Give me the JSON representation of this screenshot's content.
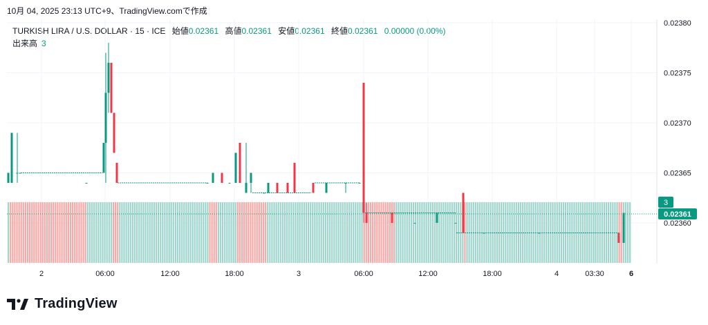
{
  "header": {
    "date_line": "10月 04, 2025 23:13 UTC+9、TradingView.comで作成"
  },
  "legend": {
    "symbol": "TURKISH LIRA / U.S. DOLLAR · 15 · ICE",
    "open_label": "始値",
    "open": "0.02361",
    "high_label": "高値",
    "high": "0.02361",
    "low_label": "安値",
    "low": "0.02361",
    "close_label": "終値",
    "close": "0.02361",
    "change": "0.00000 (0.00%)"
  },
  "volume_legend": {
    "label": "出来高",
    "value": "3"
  },
  "price_badge": "0.02361",
  "volume_badge": "3",
  "colors": {
    "up": "#089981",
    "down": "#f23645",
    "vol_up": "#9ed6cc",
    "vol_down": "#f7a9a7",
    "grid": "#f0f3fa"
  },
  "logo": {
    "icon": "tradingview-logo-icon",
    "text": "TradingView"
  },
  "chart_data": {
    "type": "candlestick",
    "y_ticks": [
      "0.02380",
      "0.02375",
      "0.02370",
      "0.02365",
      "0.02360"
    ],
    "x_ticks": [
      "2",
      "06:00",
      "12:00",
      "18:00",
      "3",
      "06:00",
      "12:00",
      "18:00",
      "4",
      "03:30",
      "6"
    ],
    "ylim": [
      0.023582,
      0.02381
    ],
    "last_price": 0.02361,
    "candles": [
      {
        "o": 0.02364,
        "h": 0.02365,
        "l": 0.02364,
        "c": 0.02365
      },
      {
        "o": 0.02364,
        "h": 0.02369,
        "l": 0.02364,
        "c": 0.02369
      },
      {
        "o": 0.02365,
        "h": 0.02369,
        "l": 0.02364,
        "c": 0.02365
      },
      {
        "o": 0.02365,
        "h": 0.02365,
        "l": 0.02365,
        "c": 0.02365
      },
      {
        "o": 0.02364,
        "h": 0.02364,
        "l": 0.02364,
        "c": 0.02364
      },
      {
        "o": 0.02365,
        "h": 0.02368,
        "l": 0.02365,
        "c": 0.02368
      },
      {
        "o": 0.02368,
        "h": 0.02377,
        "l": 0.02364,
        "c": 0.02373
      },
      {
        "o": 0.02373,
        "h": 0.02378,
        "l": 0.02371,
        "c": 0.02376
      },
      {
        "o": 0.02376,
        "h": 0.02376,
        "l": 0.02371,
        "c": 0.02371
      },
      {
        "o": 0.02371,
        "h": 0.02371,
        "l": 0.02367,
        "c": 0.02367
      },
      {
        "o": 0.02366,
        "h": 0.02366,
        "l": 0.02364,
        "c": 0.02364
      },
      {
        "o": 0.02364,
        "h": 0.02364,
        "l": 0.02364,
        "c": 0.02364
      },
      {
        "o": 0.02364,
        "h": 0.02365,
        "l": 0.02364,
        "c": 0.02365
      },
      {
        "o": 0.02365,
        "h": 0.02365,
        "l": 0.02364,
        "c": 0.02364
      },
      {
        "o": 0.02364,
        "h": 0.02364,
        "l": 0.02364,
        "c": 0.02364
      },
      {
        "o": 0.02364,
        "h": 0.02367,
        "l": 0.02364,
        "c": 0.02367
      },
      {
        "o": 0.02368,
        "h": 0.02368,
        "l": 0.02364,
        "c": 0.02364
      },
      {
        "o": 0.02363,
        "h": 0.02368,
        "l": 0.02363,
        "c": 0.02364
      },
      {
        "o": 0.02364,
        "h": 0.02365,
        "l": 0.02363,
        "c": 0.02365
      },
      {
        "o": 0.02363,
        "h": 0.02363,
        "l": 0.02363,
        "c": 0.02363
      },
      {
        "o": 0.02363,
        "h": 0.02364,
        "l": 0.02363,
        "c": 0.02364
      },
      {
        "o": 0.02364,
        "h": 0.02364,
        "l": 0.02363,
        "c": 0.02363
      },
      {
        "o": 0.02364,
        "h": 0.02364,
        "l": 0.02363,
        "c": 0.02363
      },
      {
        "o": 0.02366,
        "h": 0.02366,
        "l": 0.02363,
        "c": 0.02363
      },
      {
        "o": 0.02364,
        "h": 0.02364,
        "l": 0.02363,
        "c": 0.02363
      },
      {
        "o": 0.02363,
        "h": 0.02364,
        "l": 0.02363,
        "c": 0.02364
      },
      {
        "o": 0.02364,
        "h": 0.02364,
        "l": 0.02363,
        "c": 0.02364
      },
      {
        "o": 0.02364,
        "h": 0.02364,
        "l": 0.02364,
        "c": 0.02364
      },
      {
        "o": 0.02374,
        "h": 0.02374,
        "l": 0.0236,
        "c": 0.02361
      },
      {
        "o": 0.02361,
        "h": 0.02362,
        "l": 0.0236,
        "c": 0.0236
      },
      {
        "o": 0.02361,
        "h": 0.02361,
        "l": 0.0236,
        "c": 0.0236
      },
      {
        "o": 0.0236,
        "h": 0.0236,
        "l": 0.0236,
        "c": 0.0236
      },
      {
        "o": 0.0236,
        "h": 0.02361,
        "l": 0.0236,
        "c": 0.02361
      },
      {
        "o": 0.0236,
        "h": 0.0236,
        "l": 0.0236,
        "c": 0.0236
      },
      {
        "o": 0.02363,
        "h": 0.02363,
        "l": 0.02359,
        "c": 0.02359
      },
      {
        "o": 0.02359,
        "h": 0.02359,
        "l": 0.02359,
        "c": 0.02359
      },
      {
        "o": 0.02359,
        "h": 0.02359,
        "l": 0.02359,
        "c": 0.02359
      },
      {
        "o": 0.02359,
        "h": 0.02359,
        "l": 0.02358,
        "c": 0.02358
      },
      {
        "o": 0.02358,
        "h": 0.02361,
        "l": 0.02358,
        "c": 0.02361
      }
    ],
    "candle_x": [
      12,
      17,
      25,
      29,
      125,
      150,
      153,
      157,
      161,
      165,
      169,
      300,
      308,
      321,
      332,
      341,
      347,
      356,
      363,
      382,
      388,
      401,
      416,
      426,
      453,
      472,
      500,
      520,
      526,
      530,
      567,
      600,
      632,
      659,
      670,
      700,
      780,
      895,
      902
    ],
    "volume": [
      3,
      3,
      3,
      3,
      3,
      3,
      3,
      3,
      3,
      3,
      3,
      3,
      3,
      3,
      3,
      3,
      3,
      3,
      3,
      3,
      3,
      3,
      3,
      3,
      3,
      3,
      3,
      3,
      3,
      3,
      3,
      3,
      3,
      3,
      3,
      3,
      3,
      3,
      3
    ],
    "volume_bars_pattern": "continuous-15min",
    "volume_scale_max": 3
  }
}
